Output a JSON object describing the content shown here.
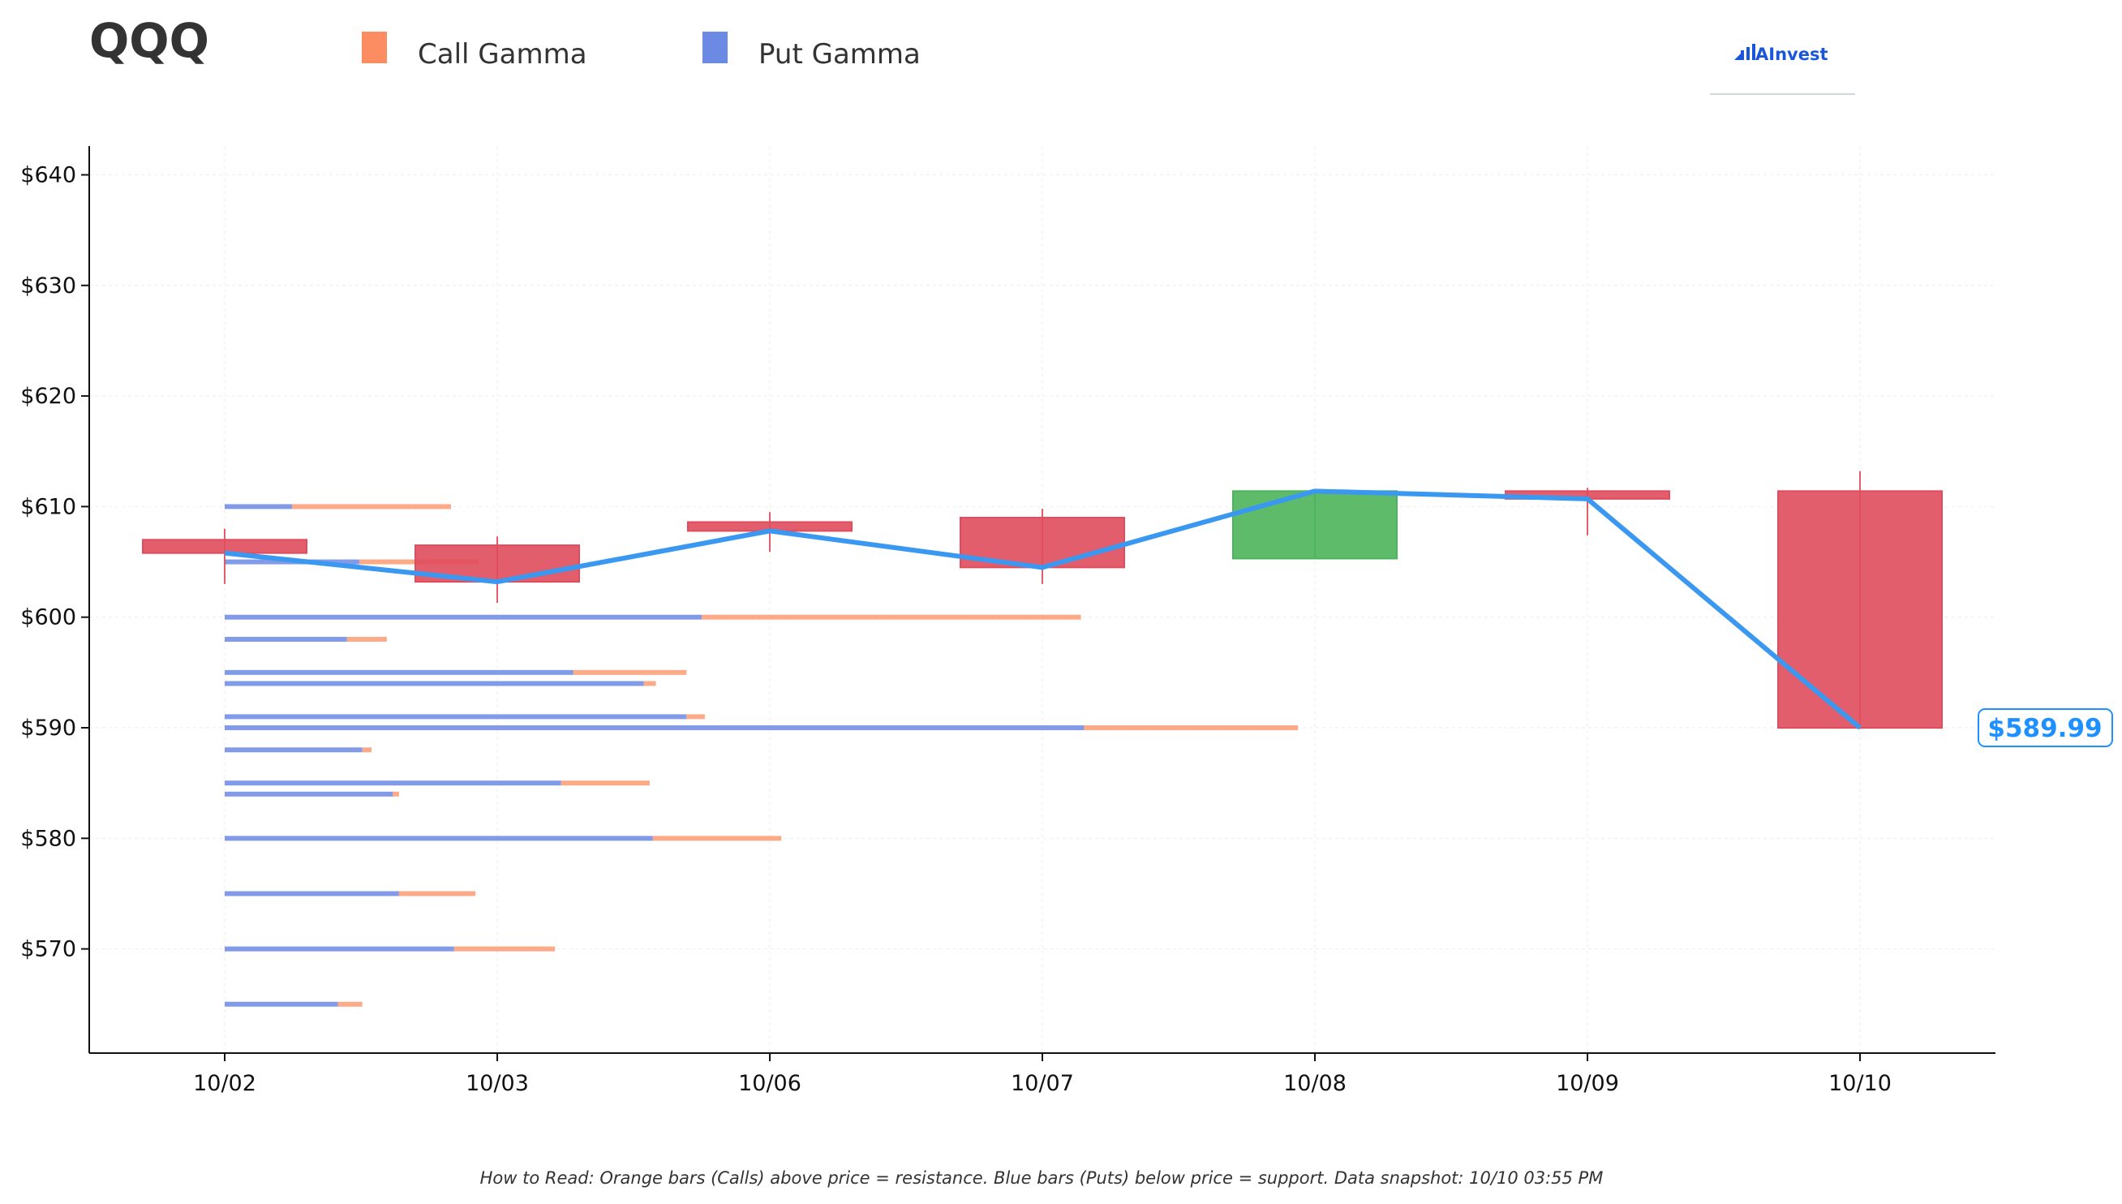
{
  "title": "QQQ",
  "legend": [
    {
      "label": "Call Gamma",
      "color": "#fc8d62"
    },
    {
      "label": "Put Gamma",
      "color": "#6c8ae4"
    }
  ],
  "logo": {
    "text": "AInvest",
    "icon": "bar-chart-icon"
  },
  "footnote": "How to Read: Orange bars (Calls) above price = resistance. Blue bars (Puts) below price = support. Data snapshot: 10/10 03:55 PM",
  "current_price_label": "$589.99",
  "colors": {
    "up": "#4cb45a",
    "down": "#e04c5c",
    "price_line": "#3a98f0",
    "call": "#fc8d62",
    "put": "#6c8ae4"
  },
  "chart_data": {
    "type": "candlestick",
    "categories": [
      "10/02",
      "10/03",
      "10/06",
      "10/07",
      "10/08",
      "10/09",
      "10/10"
    ],
    "candles": [
      {
        "date": "10/02",
        "open": 607.0,
        "high": 608.0,
        "low": 603.0,
        "close": 605.8
      },
      {
        "date": "10/03",
        "open": 606.5,
        "high": 607.3,
        "low": 601.3,
        "close": 603.2
      },
      {
        "date": "10/06",
        "open": 608.6,
        "high": 609.5,
        "low": 605.9,
        "close": 607.8
      },
      {
        "date": "10/07",
        "open": 609.0,
        "high": 609.8,
        "low": 603.0,
        "close": 604.5
      },
      {
        "date": "10/08",
        "open": 605.3,
        "high": 611.5,
        "low": 605.3,
        "close": 611.4
      },
      {
        "date": "10/09",
        "open": 611.4,
        "high": 611.7,
        "low": 607.4,
        "close": 610.7
      },
      {
        "date": "10/10",
        "open": 611.4,
        "high": 613.2,
        "low": 589.9,
        "close": 589.99
      }
    ],
    "price_line": [
      605.8,
      603.2,
      607.8,
      604.5,
      611.4,
      610.7,
      589.99
    ],
    "gamma_bars": [
      {
        "strike": 610,
        "put": 0.22,
        "call": 0.52
      },
      {
        "strike": 605,
        "put": 0.44,
        "call": 0.39
      },
      {
        "strike": 600,
        "put": 1.56,
        "call": 1.24
      },
      {
        "strike": 598,
        "put": 0.4,
        "call": 0.13
      },
      {
        "strike": 595,
        "put": 1.14,
        "call": 0.37
      },
      {
        "strike": 594,
        "put": 1.37,
        "call": 0.04
      },
      {
        "strike": 591,
        "put": 1.51,
        "call": 0.06
      },
      {
        "strike": 590,
        "put": 2.81,
        "call": 0.7
      },
      {
        "strike": 588,
        "put": 0.45,
        "call": 0.03
      },
      {
        "strike": 585,
        "put": 1.1,
        "call": 0.29
      },
      {
        "strike": 584,
        "put": 0.55,
        "call": 0.02
      },
      {
        "strike": 580,
        "put": 1.4,
        "call": 0.42
      },
      {
        "strike": 575,
        "put": 0.57,
        "call": 0.25
      },
      {
        "strike": 570,
        "put": 0.75,
        "call": 0.33
      },
      {
        "strike": 565,
        "put": 0.37,
        "call": 0.08
      }
    ],
    "ylim": [
      560.5,
      643
    ],
    "yticks": [
      570,
      580,
      590,
      600,
      610,
      620,
      630,
      640
    ],
    "ytick_labels": [
      "$570",
      "$580",
      "$590",
      "$600",
      "$610",
      "$620",
      "$630",
      "$640"
    ],
    "grid": true
  }
}
